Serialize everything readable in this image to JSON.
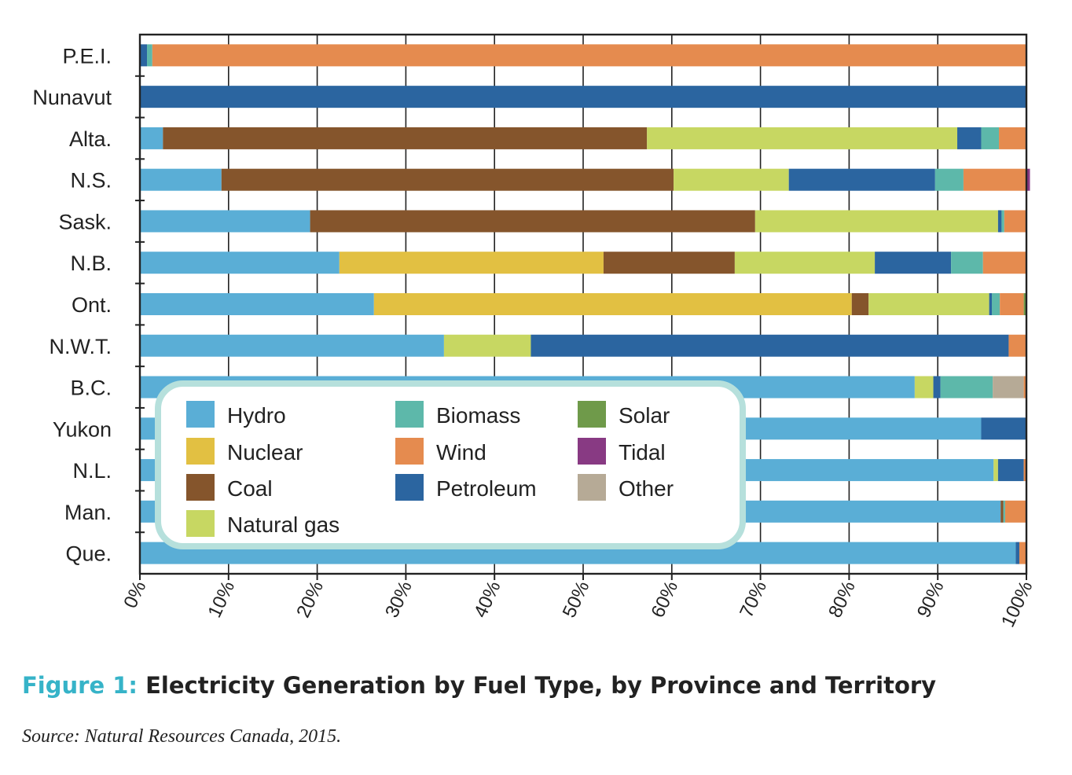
{
  "figure": {
    "label": "Figure 1:",
    "title": "Electricity Generation by Fuel Type, by Province and Territory",
    "source": "Source: Natural Resources Canada, 2015."
  },
  "colors": {
    "Hydro": "#5aaed6",
    "Nuclear": "#e2c042",
    "Coal": "#85552c",
    "Natural gas": "#c7d762",
    "Biomass": "#5db8aa",
    "Wind": "#e58b4f",
    "Petroleum": "#2b65a0",
    "Solar": "#6f9a4a",
    "Tidal": "#883a83",
    "Other": "#b6aa96",
    "legend_border": "#b6e0dc"
  },
  "chart_data": {
    "type": "bar",
    "orientation": "horizontal",
    "stacked": true,
    "title": "",
    "xlabel": "",
    "ylabel": "",
    "xlim": [
      0,
      100
    ],
    "x_ticks": [
      "0%",
      "10%",
      "20%",
      "30%",
      "40%",
      "50%",
      "60%",
      "70%",
      "80%",
      "90%",
      "100%"
    ],
    "grid": "vertical",
    "legend_position": "bottom-left, inside plot",
    "legend": [
      "Hydro",
      "Nuclear",
      "Coal",
      "Natural gas",
      "Biomass",
      "Wind",
      "Petroleum",
      "Solar",
      "Tidal",
      "Other"
    ],
    "categories": [
      "P.E.I.",
      "Nunavut",
      "Alta.",
      "N.S.",
      "Sask.",
      "N.B.",
      "Ont.",
      "N.W.T.",
      "B.C.",
      "Yukon",
      "N.L.",
      "Man.",
      "Que."
    ],
    "rows": [
      {
        "name": "P.E.I.",
        "segments": [
          [
            "Petroleum",
            0.8
          ],
          [
            "Biomass",
            0.6
          ],
          [
            "Wind",
            98.6
          ]
        ]
      },
      {
        "name": "Nunavut",
        "segments": [
          [
            "Petroleum",
            100
          ]
        ]
      },
      {
        "name": "Alta.",
        "segments": [
          [
            "Hydro",
            2.6
          ],
          [
            "Coal",
            54.6
          ],
          [
            "Natural gas",
            35.0
          ],
          [
            "Petroleum",
            2.7
          ],
          [
            "Biomass",
            2.0
          ],
          [
            "Wind",
            3.1
          ]
        ]
      },
      {
        "name": "N.S.",
        "segments": [
          [
            "Hydro",
            9.2
          ],
          [
            "Coal",
            51.0
          ],
          [
            "Natural gas",
            13.0
          ],
          [
            "Petroleum",
            16.5
          ],
          [
            "Biomass",
            3.2
          ],
          [
            "Wind",
            7.1
          ],
          [
            "Tidal",
            0.4
          ]
        ]
      },
      {
        "name": "Sask.",
        "segments": [
          [
            "Hydro",
            19.2
          ],
          [
            "Coal",
            50.2
          ],
          [
            "Natural gas",
            27.4
          ],
          [
            "Petroleum",
            0.4
          ],
          [
            "Biomass",
            0.3
          ],
          [
            "Wind",
            2.5
          ]
        ]
      },
      {
        "name": "N.B.",
        "segments": [
          [
            "Hydro",
            22.5
          ],
          [
            "Nuclear",
            29.8
          ],
          [
            "Coal",
            14.8
          ],
          [
            "Natural gas",
            15.8
          ],
          [
            "Petroleum",
            8.6
          ],
          [
            "Biomass",
            3.6
          ],
          [
            "Wind",
            4.9
          ]
        ]
      },
      {
        "name": "Ont.",
        "segments": [
          [
            "Hydro",
            26.4
          ],
          [
            "Nuclear",
            53.9
          ],
          [
            "Coal",
            1.9
          ],
          [
            "Natural gas",
            13.6
          ],
          [
            "Petroleum",
            0.3
          ],
          [
            "Biomass",
            0.9
          ],
          [
            "Wind",
            2.7
          ],
          [
            "Solar",
            0.3
          ]
        ]
      },
      {
        "name": "N.W.T.",
        "segments": [
          [
            "Hydro",
            34.3
          ],
          [
            "Natural gas",
            9.8
          ],
          [
            "Petroleum",
            53.9
          ],
          [
            "Wind",
            2.0
          ]
        ]
      },
      {
        "name": "B.C.",
        "segments": [
          [
            "Hydro",
            87.4
          ],
          [
            "Natural gas",
            2.1
          ],
          [
            "Petroleum",
            0.8
          ],
          [
            "Biomass",
            5.9
          ],
          [
            "Other",
            3.5
          ],
          [
            "Wind",
            0.3
          ]
        ]
      },
      {
        "name": "Yukon",
        "segments": [
          [
            "Hydro",
            94.9
          ],
          [
            "Petroleum",
            5.1
          ]
        ]
      },
      {
        "name": "N.L.",
        "segments": [
          [
            "Hydro",
            96.3
          ],
          [
            "Natural gas",
            0.5
          ],
          [
            "Petroleum",
            2.9
          ],
          [
            "Wind",
            0.3
          ]
        ]
      },
      {
        "name": "Man.",
        "segments": [
          [
            "Hydro",
            97.1
          ],
          [
            "Coal",
            0.3
          ],
          [
            "Biomass",
            0.2
          ],
          [
            "Wind",
            2.4
          ]
        ]
      },
      {
        "name": "Que.",
        "segments": [
          [
            "Hydro",
            98.8
          ],
          [
            "Petroleum",
            0.4
          ],
          [
            "Wind",
            0.8
          ]
        ]
      }
    ]
  }
}
